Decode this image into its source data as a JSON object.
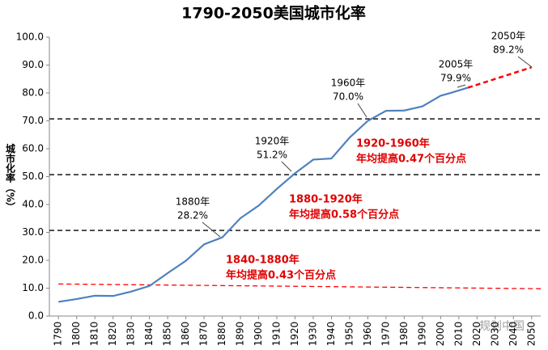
{
  "chart_data": {
    "type": "line",
    "title": "1790-2050美国城市化率",
    "y_label": "城市化率（%）",
    "xlim": [
      1785,
      2055
    ],
    "xticks": [
      1790,
      1800,
      1810,
      1820,
      1830,
      1840,
      1850,
      1860,
      1870,
      1880,
      1890,
      1900,
      1910,
      1920,
      1930,
      1940,
      1950,
      1960,
      1970,
      1980,
      1990,
      2000,
      2010,
      2020,
      2030,
      2040,
      2050
    ],
    "ylim": [
      0,
      100
    ],
    "yticks": [
      {
        "value": 0,
        "label": "0.0"
      },
      {
        "value": 10,
        "label": "10.0"
      },
      {
        "value": 20,
        "label": "20.0"
      },
      {
        "value": 30,
        "label": "30.0"
      },
      {
        "value": 40,
        "label": "40.0"
      },
      {
        "value": 50,
        "label": "50.0"
      },
      {
        "value": 60,
        "label": "60.0"
      },
      {
        "value": 70,
        "label": "70.0"
      },
      {
        "value": 80,
        "label": "80.0"
      },
      {
        "value": 90,
        "label": "90.0"
      },
      {
        "value": 100,
        "label": "100.0"
      }
    ],
    "series": [
      {
        "color": "#4f81bd",
        "dash": false,
        "x": [
          1790,
          1800,
          1810,
          1820,
          1830,
          1840,
          1850,
          1860,
          1870,
          1880,
          1890,
          1900,
          1910,
          1920,
          1930,
          1940,
          1950,
          1960,
          1970,
          1980,
          1990,
          2000,
          2005,
          2015
        ],
        "values": [
          5.1,
          6.1,
          7.3,
          7.2,
          8.8,
          10.8,
          15.4,
          19.8,
          25.7,
          28.2,
          35.1,
          39.6,
          45.6,
          51.2,
          56.1,
          56.5,
          64.0,
          70.0,
          73.6,
          73.7,
          75.2,
          79.0,
          79.9,
          81.9
        ]
      },
      {
        "color": "#ff0000",
        "dash": true,
        "x": [
          2015,
          2050
        ],
        "values": [
          81.9,
          89.2
        ]
      }
    ],
    "reference_lines": [
      {
        "color": "#000000",
        "x": [
          1785,
          2055
        ],
        "values": [
          70.7,
          70.7
        ]
      },
      {
        "color": "#000000",
        "x": [
          1785,
          2055
        ],
        "values": [
          50.7,
          50.7
        ]
      },
      {
        "color": "#000000",
        "x": [
          1785,
          2055
        ],
        "values": [
          30.7,
          30.7
        ]
      },
      {
        "color": "#ff0000",
        "x": [
          1790,
          2055
        ],
        "values": [
          11.5,
          9.8
        ]
      }
    ],
    "annotations": [
      {
        "lines": [
          "1880年",
          "28.2%"
        ]
      },
      {
        "lines": [
          "1920年",
          "51.2%"
        ]
      },
      {
        "lines": [
          "1960年",
          "70.0%"
        ]
      },
      {
        "lines": [
          "2005年",
          "79.9%"
        ]
      },
      {
        "lines": [
          "2050年",
          "89.2%"
        ]
      }
    ],
    "notes": [
      {
        "lines": [
          "1920-1960年",
          "年均提高0.47个百分点"
        ]
      },
      {
        "lines": [
          "1880-1920年",
          "年均提高0.58个百分点"
        ]
      },
      {
        "lines": [
          "1840-1880年",
          "年均提高0.43个百分点"
        ]
      }
    ],
    "watermark": "规划中国"
  }
}
